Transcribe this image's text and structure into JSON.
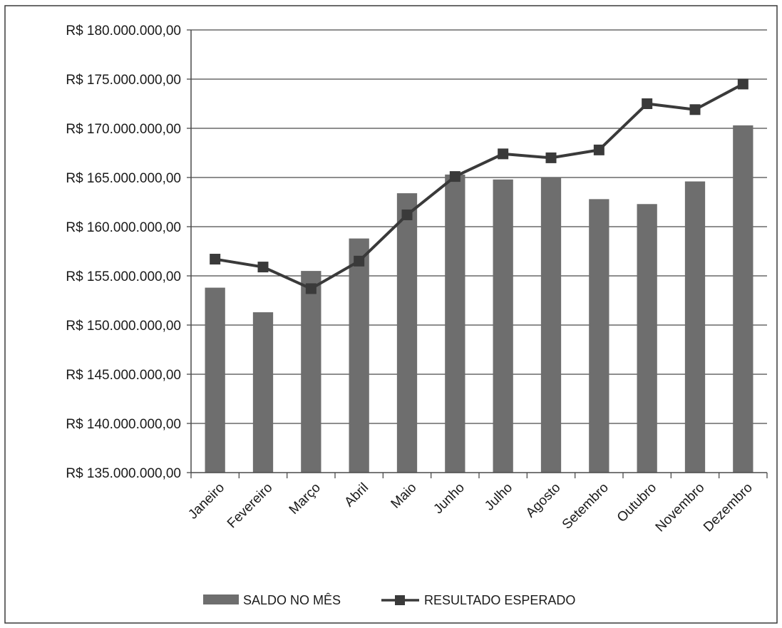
{
  "chart_data": {
    "type": "bar",
    "categories": [
      "Janeiro",
      "Fevereiro",
      "Março",
      "Abril",
      "Maio",
      "Junho",
      "Julho",
      "Agosto",
      "Setembro",
      "Outubro",
      "Novembro",
      "Dezembro"
    ],
    "series": [
      {
        "name": "SALDO NO MÊS",
        "type": "bar",
        "values": [
          153800000,
          151300000,
          155500000,
          158800000,
          163400000,
          165300000,
          164800000,
          165000000,
          162800000,
          162300000,
          164600000,
          170300000
        ]
      },
      {
        "name": "RESULTADO ESPERADO",
        "type": "line",
        "values": [
          156700000,
          155900000,
          153700000,
          156500000,
          161200000,
          165100000,
          167400000,
          167000000,
          167800000,
          172500000,
          171900000,
          174500000
        ]
      }
    ],
    "ylim": [
      135000000,
      180000000
    ],
    "yticks": [
      {
        "value": 135000000,
        "label": "R$ 135.000.000,00"
      },
      {
        "value": 140000000,
        "label": "R$ 140.000.000,00"
      },
      {
        "value": 145000000,
        "label": "R$ 145.000.000,00"
      },
      {
        "value": 150000000,
        "label": "R$ 150.000.000,00"
      },
      {
        "value": 155000000,
        "label": "R$ 155.000.000,00"
      },
      {
        "value": 160000000,
        "label": "R$ 160.000.000,00"
      },
      {
        "value": 165000000,
        "label": "R$ 165.000.000,00"
      },
      {
        "value": 170000000,
        "label": "R$ 170.000.000,00"
      },
      {
        "value": 175000000,
        "label": "R$ 175.000.000,00"
      },
      {
        "value": 180000000,
        "label": "R$ 180.000.000,00"
      }
    ],
    "grid": true,
    "legend": "bottom",
    "colors": {
      "bar": "#6e6e6e",
      "line": "#3a3a3a",
      "grid": "#4a4a4a",
      "text": "#1a1a1a"
    }
  }
}
